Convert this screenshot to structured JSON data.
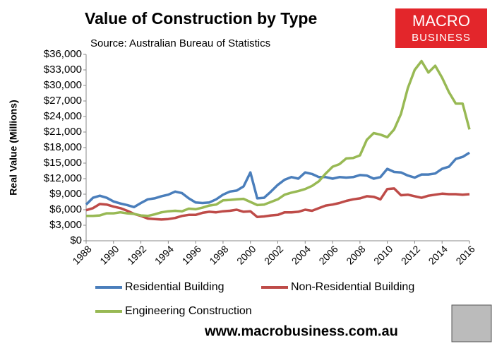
{
  "chart_data": {
    "type": "line",
    "title": "Value of Construction by Type",
    "subtitle": "Source: Australian Bureau of Statistics",
    "y_label": "Real Value (Millions)",
    "x": [
      1988,
      1988.5,
      1989,
      1989.5,
      1990,
      1990.5,
      1991,
      1991.5,
      1992,
      1992.5,
      1993,
      1993.5,
      1994,
      1994.5,
      1995,
      1995.5,
      1996,
      1996.5,
      1997,
      1997.5,
      1998,
      1998.5,
      1999,
      1999.5,
      2000,
      2000.5,
      2001,
      2001.5,
      2002,
      2002.5,
      2003,
      2003.5,
      2004,
      2004.5,
      2005,
      2005.5,
      2006,
      2006.5,
      2007,
      2007.5,
      2008,
      2008.5,
      2009,
      2009.5,
      2010,
      2010.5,
      2011,
      2011.5,
      2012,
      2012.5,
      2013,
      2013.5,
      2014,
      2014.5,
      2015,
      2015.5,
      2016
    ],
    "series": [
      {
        "name": "Residential Building",
        "color": "#4a7ebb",
        "values": [
          7000,
          8300,
          8700,
          8300,
          7600,
          7200,
          6900,
          6500,
          7300,
          8000,
          8200,
          8600,
          8900,
          9500,
          9200,
          8200,
          7400,
          7300,
          7400,
          8000,
          8900,
          9500,
          9700,
          10500,
          13200,
          8200,
          8300,
          9500,
          10800,
          11800,
          12300,
          12000,
          13200,
          12900,
          12300,
          12300,
          12000,
          12300,
          12200,
          12300,
          12700,
          12600,
          12000,
          12300,
          13900,
          13300,
          13200,
          12600,
          12200,
          12800,
          12800,
          13000,
          13900,
          14300,
          15800,
          16200,
          17000
        ]
      },
      {
        "name": "Non-Residential Building",
        "color": "#be4b48",
        "values": [
          5900,
          6300,
          7100,
          7000,
          6600,
          6300,
          5800,
          5200,
          4800,
          4300,
          4200,
          4100,
          4200,
          4400,
          4800,
          5000,
          5000,
          5400,
          5600,
          5500,
          5700,
          5800,
          6000,
          5600,
          5700,
          4600,
          4700,
          4900,
          5000,
          5500,
          5500,
          5600,
          6000,
          5800,
          6300,
          6800,
          7000,
          7300,
          7700,
          8000,
          8200,
          8600,
          8500,
          8000,
          10000,
          10100,
          8800,
          8900,
          8600,
          8300,
          8700,
          8900,
          9100,
          9000,
          9000,
          8900,
          9000
        ]
      },
      {
        "name": "Engineering Construction",
        "color": "#98b954",
        "values": [
          4800,
          4800,
          4900,
          5300,
          5300,
          5500,
          5300,
          5200,
          4900,
          4800,
          5100,
          5500,
          5700,
          5800,
          5700,
          6200,
          6100,
          6400,
          6800,
          7000,
          7800,
          7900,
          8000,
          8100,
          7500,
          6900,
          7000,
          7500,
          8000,
          8900,
          9300,
          9600,
          10000,
          10600,
          11500,
          13000,
          14300,
          14800,
          15900,
          16000,
          16500,
          19500,
          20800,
          20500,
          20000,
          21500,
          24500,
          29500,
          33000,
          34700,
          32500,
          33800,
          31500,
          28700,
          26500,
          26500,
          21500
        ]
      }
    ],
    "xlim": [
      1988,
      2016
    ],
    "xticks": [
      1988,
      1990,
      1992,
      1994,
      1996,
      1998,
      2000,
      2002,
      2004,
      2006,
      2008,
      2010,
      2012,
      2014,
      2016
    ],
    "ylim": [
      0,
      36000
    ],
    "yticks": [
      {
        "value": 0,
        "label": "$0"
      },
      {
        "value": 3000,
        "label": "$3,000"
      },
      {
        "value": 6000,
        "label": "$6,000"
      },
      {
        "value": 9000,
        "label": "$9,000"
      },
      {
        "value": 12000,
        "label": "$12,000"
      },
      {
        "value": 15000,
        "label": "$15,000"
      },
      {
        "value": 18000,
        "label": "$18,000"
      },
      {
        "value": 21000,
        "label": "$21,000"
      },
      {
        "value": 24000,
        "label": "$24,000"
      },
      {
        "value": 27000,
        "label": "$27,000"
      },
      {
        "value": 30000,
        "label": "$30,000"
      },
      {
        "value": 33000,
        "label": "$33,000"
      },
      {
        "value": 36000,
        "label": "$36,000"
      }
    ],
    "grid": false
  },
  "logo": {
    "line1": "MACRO",
    "line2": "BUSINESS"
  },
  "footer": "www.macrobusiness.com.au"
}
